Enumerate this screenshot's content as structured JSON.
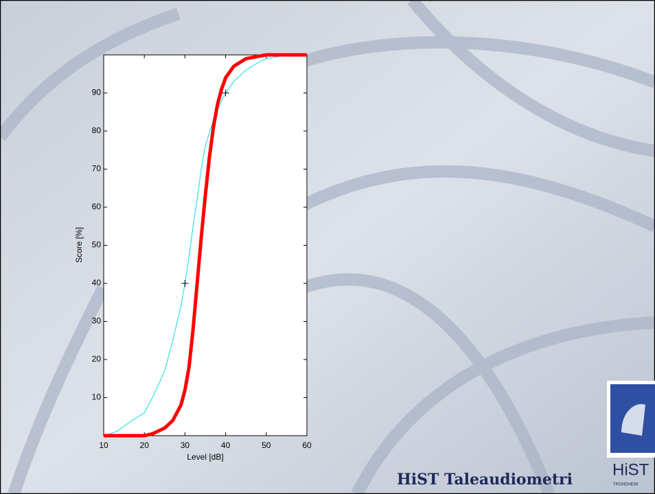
{
  "chart_data": {
    "type": "line",
    "xlabel": "Level [dB]",
    "ylabel": "Score [%]",
    "xlim": [
      10,
      60
    ],
    "xticks": [
      10,
      20,
      30,
      40,
      50,
      60
    ],
    "ylim": [
      0,
      100
    ],
    "yticks": [
      10,
      20,
      30,
      40,
      50,
      60,
      70,
      80,
      90
    ],
    "series": [
      {
        "color": "#33e0e8",
        "x": [
          10,
          13,
          17,
          20,
          22,
          25,
          27,
          29,
          30,
          31,
          32,
          33,
          34,
          35,
          37,
          39,
          40,
          42,
          45,
          48,
          50,
          55,
          60
        ],
        "values": [
          0,
          1,
          4,
          6,
          10,
          17,
          25,
          34,
          40,
          47,
          55,
          62,
          70,
          76,
          83,
          88,
          90,
          93,
          96,
          98,
          99,
          100,
          100
        ]
      },
      {
        "color": "#ff0000",
        "x": [
          10,
          20,
          22,
          25,
          27,
          29,
          30,
          31,
          32,
          33,
          34,
          35,
          36,
          37,
          38,
          39,
          40,
          42,
          45,
          50,
          60
        ],
        "values": [
          0,
          0,
          0.5,
          2,
          4,
          8,
          12,
          18,
          28,
          40,
          52,
          63,
          73,
          81,
          87,
          91,
          94,
          97,
          99,
          100,
          100
        ]
      }
    ],
    "markers": {
      "x": [
        30,
        40
      ],
      "values": [
        40,
        90
      ]
    }
  },
  "footer": "HiST Taleaudiometri",
  "logo": {
    "name": "HiST",
    "city": "TRONDHEIM"
  }
}
